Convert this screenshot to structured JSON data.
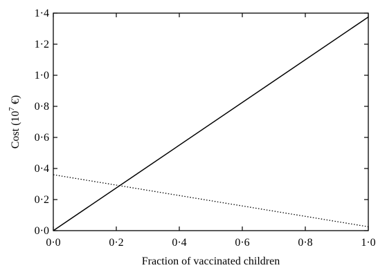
{
  "chart_data": {
    "type": "line",
    "title": "",
    "xlabel": "Fraction of vaccinated children",
    "ylabel": {
      "prefix": "Cost (10",
      "exponent": "7",
      "suffix": " €)"
    },
    "xlim": [
      0,
      1
    ],
    "ylim": [
      0,
      1.4
    ],
    "grid": false,
    "x_ticks": [
      {
        "value": 0.0,
        "label": "0·0"
      },
      {
        "value": 0.2,
        "label": "0·2"
      },
      {
        "value": 0.4,
        "label": "0·4"
      },
      {
        "value": 0.6,
        "label": "0·6"
      },
      {
        "value": 0.8,
        "label": "0·8"
      },
      {
        "value": 1.0,
        "label": "1·0"
      }
    ],
    "y_ticks": [
      {
        "value": 0.0,
        "label": "0·0"
      },
      {
        "value": 0.2,
        "label": "0·2"
      },
      {
        "value": 0.4,
        "label": "0·4"
      },
      {
        "value": 0.6,
        "label": "0·6"
      },
      {
        "value": 0.8,
        "label": "0·8"
      },
      {
        "value": 1.0,
        "label": "1·0"
      },
      {
        "value": 1.2,
        "label": "1·2"
      },
      {
        "value": 1.4,
        "label": "1·4"
      }
    ],
    "series": [
      {
        "style": "solid",
        "color": "#000000",
        "x": [
          0.0,
          1.0
        ],
        "y": [
          0.0,
          1.375
        ]
      },
      {
        "style": "dotted",
        "color": "#000000",
        "x": [
          0.0,
          1.0
        ],
        "y": [
          0.36,
          0.025
        ]
      }
    ]
  }
}
